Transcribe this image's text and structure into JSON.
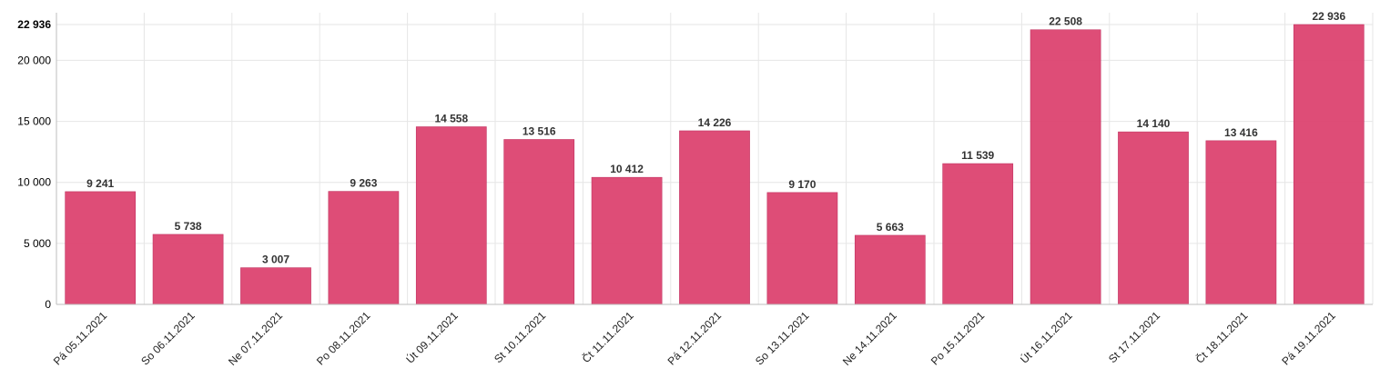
{
  "chart_data": {
    "type": "bar",
    "categories": [
      "Pá 05.11.2021",
      "So 06.11.2021",
      "Ne 07.11.2021",
      "Po 08.11.2021",
      "Út 09.11.2021",
      "St 10.11.2021",
      "Čt 11.11.2021",
      "Pá 12.11.2021",
      "So 13.11.2021",
      "Ne 14.11.2021",
      "Po 15.11.2021",
      "Út 16.11.2021",
      "St 17.11.2021",
      "Čt 18.11.2021",
      "Pá 19.11.2021"
    ],
    "values": [
      9241,
      5738,
      3007,
      9263,
      14558,
      13516,
      10412,
      14226,
      9170,
      5663,
      11539,
      22508,
      14140,
      13416,
      22936
    ],
    "value_labels": [
      "9 241",
      "5 738",
      "3 007",
      "9 263",
      "14 558",
      "13 516",
      "10 412",
      "14 226",
      "9 170",
      "5 663",
      "11 539",
      "22 508",
      "14 140",
      "13 416",
      "22 936"
    ],
    "y_ticks": [
      0,
      5000,
      10000,
      15000,
      20000,
      22936
    ],
    "y_tick_labels": [
      "0",
      "5 000",
      "10 000",
      "15 000",
      "20 000",
      "22 936"
    ],
    "ylim": [
      0,
      22936
    ],
    "grid": true,
    "legend": "none",
    "bar_color": "#dc4370",
    "title": "",
    "xlabel": "",
    "ylabel": ""
  }
}
